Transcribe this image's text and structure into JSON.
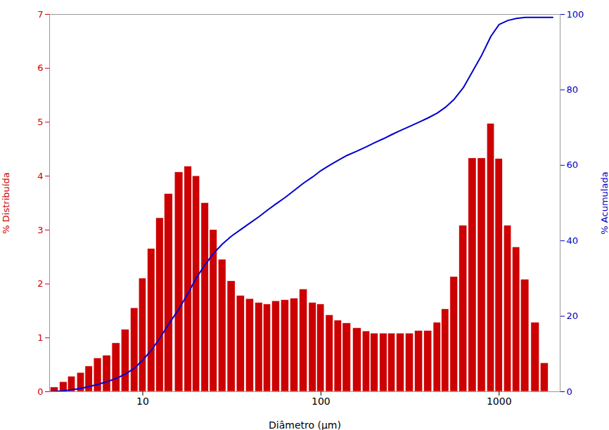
{
  "chart_data": {
    "type": "bar",
    "xlabel": "Diâmetro (μm)",
    "ylabel": "% Distribuída",
    "y2label": "% Acumulada",
    "log": "x",
    "grid": false,
    "xlim": [
      3.0,
      2200.0
    ],
    "xticks": [
      10,
      100,
      1000
    ],
    "ylim": [
      0,
      7
    ],
    "yticks": [
      0,
      1,
      2,
      3,
      4,
      5,
      6,
      7
    ],
    "y2lim": [
      0,
      100
    ],
    "y2ticks": [
      0,
      20,
      40,
      60,
      80,
      100
    ],
    "series": [
      {
        "type": "bar",
        "color": "#cc0000",
        "x": [
          3.2,
          3.6,
          4.0,
          4.5,
          5.0,
          5.6,
          6.3,
          7.1,
          8.0,
          9.0,
          10.0,
          11.2,
          12.5,
          14.0,
          16.0,
          18.0,
          20.0,
          22.4,
          25.0,
          28.0,
          31.5,
          35.5,
          40.0,
          45.0,
          50.0,
          56.0,
          63.0,
          71.0,
          80.0,
          90.0,
          100.0,
          112.0,
          125.0,
          140.0,
          160.0,
          180.0,
          200.0,
          225.0,
          250.0,
          280.0,
          315.0,
          355.0,
          400.0,
          450.0,
          500.0,
          560.0,
          630.0,
          710.0,
          800.0,
          900.0,
          1000.0,
          1120.0,
          1250.0,
          1400.0,
          1600.0,
          1800.0
        ],
        "values": [
          0.08,
          0.18,
          0.28,
          0.35,
          0.47,
          0.62,
          0.67,
          0.9,
          1.15,
          1.55,
          2.1,
          2.65,
          3.22,
          3.67,
          4.07,
          4.18,
          4.0,
          3.5,
          3.0,
          2.45,
          2.05,
          1.78,
          1.72,
          1.65,
          1.62,
          1.68,
          1.7,
          1.73,
          1.9,
          1.65,
          1.62,
          1.42,
          1.32,
          1.27,
          1.18,
          1.12,
          1.08,
          1.08,
          1.08,
          1.08,
          1.08,
          1.13,
          1.13,
          1.28,
          1.53,
          2.13,
          3.08,
          4.33,
          4.33,
          4.97,
          4.32,
          3.08,
          2.68,
          2.08,
          1.28,
          0.53
        ]
      },
      {
        "type": "line",
        "color": "#0000cc",
        "axis": "y2",
        "x": [
          3.0,
          3.2,
          3.6,
          4.0,
          4.5,
          5.0,
          5.6,
          6.3,
          7.1,
          8.0,
          9.0,
          10.0,
          11.2,
          12.5,
          14.0,
          16.0,
          18.0,
          20.0,
          22.4,
          25.0,
          28.0,
          31.5,
          35.5,
          40.0,
          45.0,
          50.0,
          56.0,
          63.0,
          71.0,
          80.0,
          90.0,
          100.0,
          112.0,
          125.0,
          140.0,
          160.0,
          180.0,
          200.0,
          225.0,
          250.0,
          280.0,
          315.0,
          355.0,
          400.0,
          450.0,
          500.0,
          560.0,
          630.0,
          710.0,
          800.0,
          900.0,
          1000.0,
          1120.0,
          1250.0,
          1400.0,
          1600.0,
          1800.0,
          2000.0
        ],
        "values": [
          0.0,
          0.07,
          0.25,
          0.53,
          0.88,
          1.35,
          1.97,
          2.64,
          3.54,
          4.69,
          6.29,
          8.39,
          11.04,
          14.29,
          17.94,
          22.0,
          26.2,
          30.2,
          33.7,
          36.7,
          39.15,
          41.25,
          43.0,
          44.72,
          46.42,
          48.1,
          49.8,
          51.5,
          53.4,
          55.3,
          56.95,
          58.6,
          60.02,
          61.34,
          62.62,
          63.8,
          64.92,
          66.0,
          67.08,
          68.16,
          69.24,
          70.32,
          71.45,
          72.58,
          73.86,
          75.39,
          77.52,
          80.6,
          84.93,
          89.26,
          94.23,
          97.31,
          98.39,
          98.92,
          99.2,
          99.2,
          99.2,
          99.2
        ]
      }
    ]
  }
}
